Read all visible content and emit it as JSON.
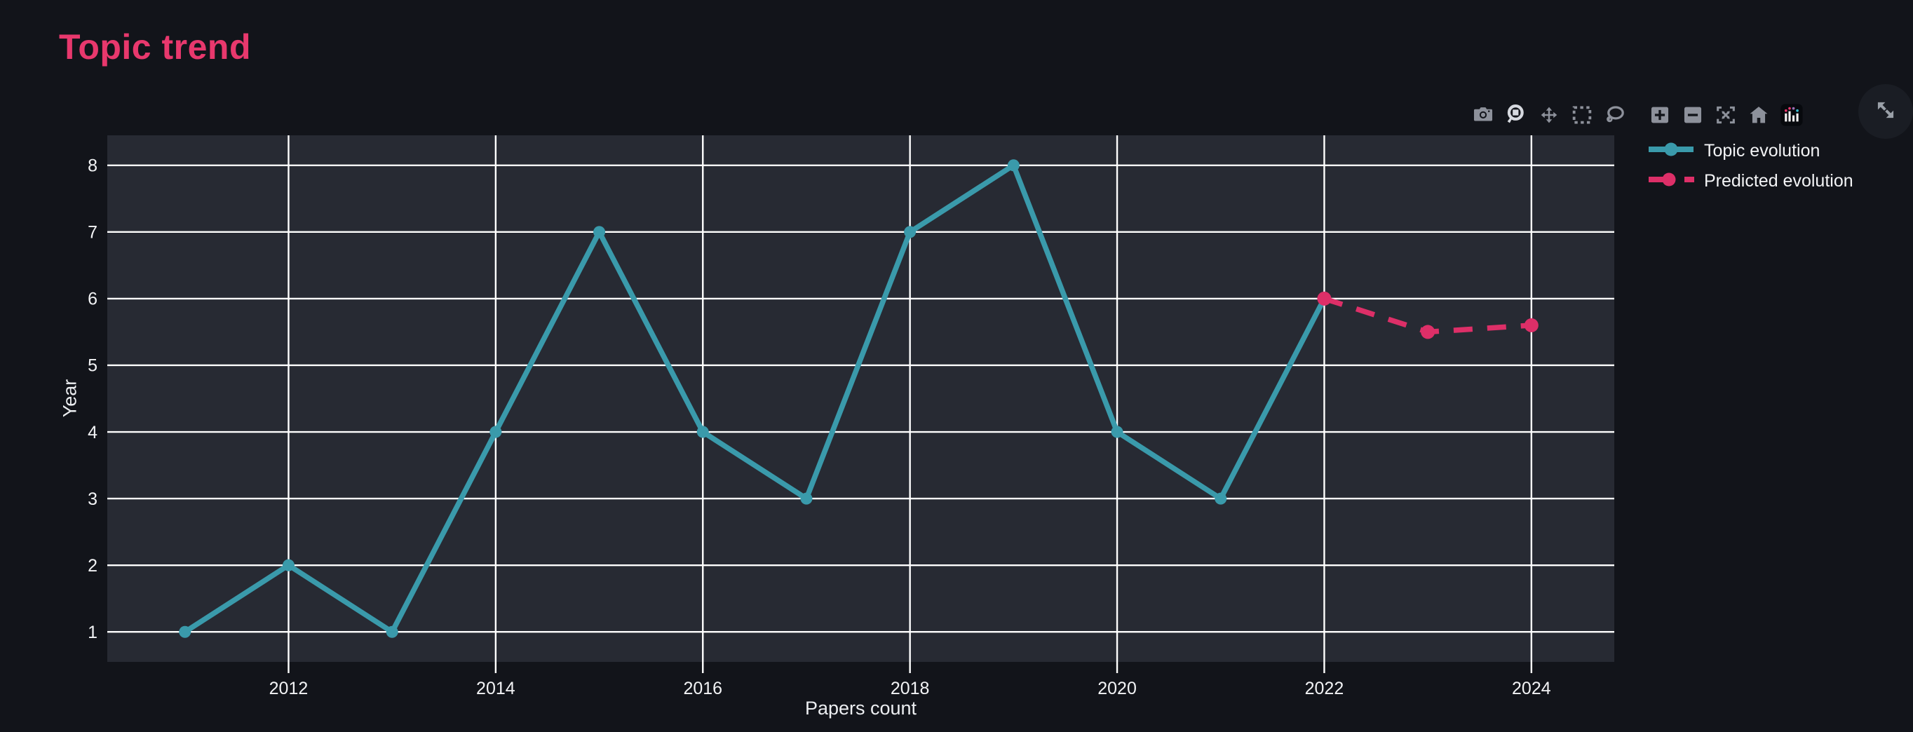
{
  "page": {
    "title": "Topic trend",
    "title_color": "#e8386d",
    "background": "#12141a"
  },
  "chart_data": {
    "type": "line",
    "title": "Topic trend",
    "xlabel": "Papers count",
    "ylabel": "Year",
    "xlim": [
      2010.25,
      2024.8
    ],
    "ylim": [
      0.55,
      8.45
    ],
    "xticks": [
      2012,
      2014,
      2016,
      2018,
      2020,
      2022,
      2024
    ],
    "yticks": [
      1,
      2,
      3,
      4,
      5,
      6,
      7,
      8
    ],
    "grid": true,
    "grid_color": "#ffffff",
    "plot_bg": "#272a33",
    "paper_bg": "#12141a",
    "tick_color": "#f2f3f5",
    "legend_position": "outside-right-top",
    "series": [
      {
        "name": "Topic evolution",
        "color": "#3a9aab",
        "style": "solid",
        "x": [
          2011,
          2012,
          2013,
          2014,
          2015,
          2016,
          2017,
          2018,
          2019,
          2020,
          2021,
          2022
        ],
        "values": [
          1,
          2,
          1,
          4,
          7,
          4,
          3,
          7,
          8,
          4,
          3,
          6
        ]
      },
      {
        "name": "Predicted evolution",
        "color": "#dd2f68",
        "style": "dashed",
        "x": [
          2022,
          2023,
          2024
        ],
        "values": [
          6,
          5.5,
          5.6
        ]
      }
    ]
  },
  "modebar": {
    "icons": [
      "camera-download-icon",
      "zoom-icon",
      "pan-icon",
      "box-select-icon",
      "lasso-select-icon",
      "zoom-in-icon",
      "zoom-out-icon",
      "autoscale-icon",
      "reset-axes-home-icon",
      "plotly-logo-icon"
    ],
    "active_icon": "zoom-icon",
    "icon_color": "#8d919b",
    "active_icon_color": "#d6d9df"
  },
  "fullscreen_button": {
    "icon": "expand-fullscreen-icon",
    "background": "#1a1d24",
    "arrow_color": "#9aa0a8"
  }
}
